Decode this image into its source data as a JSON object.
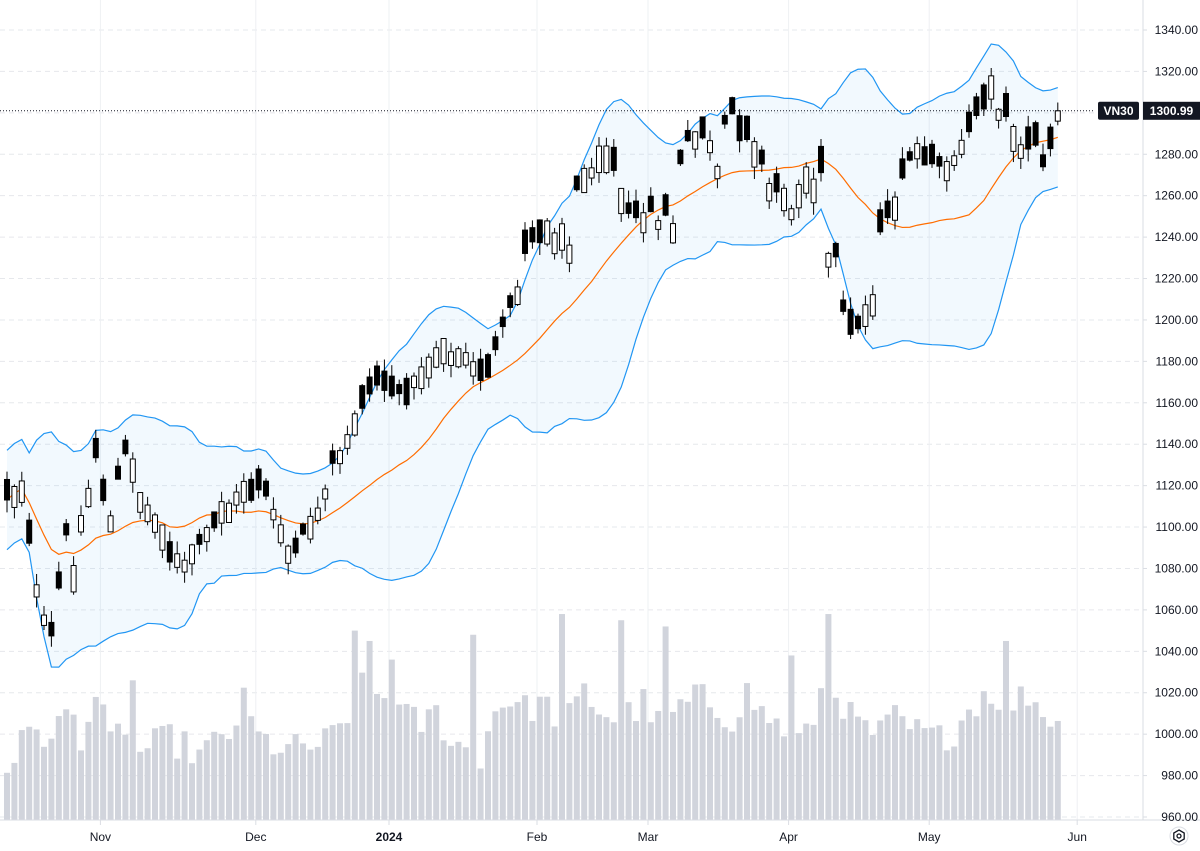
{
  "chart_data": {
    "type": "candlestick",
    "symbol": "VN30",
    "last_price": "1300.99",
    "y_axis": {
      "ylim": [
        960,
        1345
      ],
      "ticks": [
        "1340.00",
        "1320.00",
        "1300.00",
        "1280.00",
        "1260.00",
        "1240.00",
        "1220.00",
        "1200.00",
        "1180.00",
        "1160.00",
        "1140.00",
        "1120.00",
        "1100.00",
        "1080.00",
        "1060.00",
        "1040.00",
        "1020.00",
        "1000.00",
        "980.00",
        "960.00"
      ]
    },
    "x_axis": {
      "labels": [
        {
          "text": "Nov",
          "index": 6
        },
        {
          "text": "Dec",
          "index": 27
        },
        {
          "text": "2024",
          "index": 45,
          "bold": true
        },
        {
          "text": "Feb",
          "index": 65
        },
        {
          "text": "Mar",
          "index": 80
        },
        {
          "text": "Apr",
          "index": 99
        },
        {
          "text": "May",
          "index": 118
        },
        {
          "text": "Jun",
          "index": 138
        }
      ]
    },
    "grid": true,
    "bollinger_bands": {
      "upper": "blue",
      "middle": "orange",
      "lower": "blue",
      "fill": "light-blue"
    },
    "volume_in_price_units": true,
    "anchors": [
      [
        0,
        1120,
        1110
      ],
      [
        2,
        1125,
        1115
      ],
      [
        3,
        1100,
        1095
      ],
      [
        4,
        1068,
        1080
      ],
      [
        6,
        1040,
        1052
      ],
      [
        8,
        1045,
        1100
      ],
      [
        10,
        1100,
        1110
      ],
      [
        12,
        1140,
        1115
      ],
      [
        14,
        1100,
        1115
      ],
      [
        16,
        1130,
        1140
      ],
      [
        18,
        1140,
        1110
      ],
      [
        20,
        1100,
        1100
      ],
      [
        22,
        1085,
        1090
      ],
      [
        24,
        1080,
        1095
      ],
      [
        26,
        1090,
        1095
      ],
      [
        28,
        1100,
        1105
      ],
      [
        30,
        1110,
        1105
      ],
      [
        32,
        1115,
        1120
      ],
      [
        34,
        1125,
        1120
      ],
      [
        36,
        1115,
        1105
      ],
      [
        38,
        1095,
        1085
      ],
      [
        40,
        1090,
        1100
      ],
      [
        42,
        1105,
        1115
      ],
      [
        44,
        1125,
        1135
      ],
      [
        46,
        1140,
        1150
      ],
      [
        48,
        1155,
        1165
      ],
      [
        50,
        1170,
        1175
      ],
      [
        52,
        1165,
        1170
      ],
      [
        54,
        1168,
        1165
      ],
      [
        56,
        1170,
        1175
      ],
      [
        58,
        1180,
        1185
      ],
      [
        60,
        1185,
        1180
      ],
      [
        62,
        1183,
        1180
      ],
      [
        64,
        1178,
        1170
      ],
      [
        66,
        1175,
        1190
      ],
      [
        68,
        1200,
        1210
      ],
      [
        70,
        1220,
        1240
      ],
      [
        72,
        1240,
        1245
      ],
      [
        74,
        1245,
        1235
      ],
      [
        76,
        1230,
        1260
      ],
      [
        78,
        1265,
        1275
      ],
      [
        80,
        1275,
        1280
      ],
      [
        82,
        1280,
        1270
      ],
      [
        84,
        1255,
        1240
      ],
      [
        86,
        1245,
        1270
      ],
      [
        88,
        1265,
        1245
      ],
      [
        90,
        1240,
        1270
      ],
      [
        92,
        1275,
        1290
      ],
      [
        94,
        1295,
        1280
      ],
      [
        96,
        1270,
        1290
      ],
      [
        98,
        1295,
        1305
      ],
      [
        100,
        1295,
        1285
      ],
      [
        102,
        1280,
        1270
      ],
      [
        104,
        1268,
        1250
      ],
      [
        106,
        1250,
        1262
      ],
      [
        108,
        1265,
        1275
      ],
      [
        110,
        1280,
        1245
      ],
      [
        112,
        1235,
        1210
      ],
      [
        113,
        1208,
        1195
      ],
      [
        115,
        1195,
        1200
      ],
      [
        117,
        1205,
        1245
      ],
      [
        119,
        1245,
        1255
      ],
      [
        121,
        1258,
        1275
      ],
      [
        123,
        1280,
        1285
      ],
      [
        125,
        1282,
        1275
      ],
      [
        127,
        1270,
        1280
      ],
      [
        129,
        1282,
        1290
      ],
      [
        131,
        1295,
        1305
      ],
      [
        133,
        1310,
        1315
      ],
      [
        134,
        1312,
        1298
      ],
      [
        136,
        1300,
        1285
      ],
      [
        137,
        1290,
        1280
      ],
      [
        138,
        1282,
        1290
      ],
      [
        139,
        1292,
        1280
      ],
      [
        140,
        1278,
        1275
      ],
      [
        141,
        1275,
        1290
      ],
      [
        142,
        1292,
        1300
      ]
    ],
    "volume_anchors": [
      [
        0,
        985
      ],
      [
        4,
        1005
      ],
      [
        6,
        995
      ],
      [
        8,
        1012
      ],
      [
        10,
        1000
      ],
      [
        12,
        1018
      ],
      [
        14,
        995
      ],
      [
        16,
        1005
      ],
      [
        18,
        992
      ],
      [
        22,
        998
      ],
      [
        26,
        990
      ],
      [
        30,
        1000
      ],
      [
        32,
        1015
      ],
      [
        34,
        998
      ],
      [
        38,
        992
      ],
      [
        42,
        995
      ],
      [
        44,
        998
      ],
      [
        46,
        1005
      ],
      [
        48,
        1022
      ],
      [
        50,
        1020
      ],
      [
        52,
        1015
      ],
      [
        54,
        1008
      ],
      [
        56,
        1005
      ],
      [
        58,
        1010
      ],
      [
        60,
        998
      ],
      [
        62,
        992
      ],
      [
        64,
        990
      ],
      [
        66,
        1012
      ],
      [
        68,
        1018
      ],
      [
        70,
        1012
      ],
      [
        72,
        1015
      ],
      [
        74,
        1010
      ],
      [
        76,
        1008
      ],
      [
        78,
        1020
      ],
      [
        80,
        1012
      ],
      [
        82,
        1008
      ],
      [
        84,
        1010
      ],
      [
        86,
        1015
      ],
      [
        88,
        1005
      ],
      [
        90,
        1010
      ],
      [
        92,
        1015
      ],
      [
        94,
        1018
      ],
      [
        96,
        1012
      ],
      [
        98,
        1008
      ],
      [
        100,
        1020
      ],
      [
        102,
        1010
      ],
      [
        104,
        1005
      ],
      [
        106,
        1000
      ],
      [
        108,
        998
      ],
      [
        110,
        1020
      ],
      [
        112,
        1022
      ],
      [
        114,
        1008
      ],
      [
        116,
        1002
      ],
      [
        118,
        1000
      ],
      [
        120,
        1008
      ],
      [
        122,
        1002
      ],
      [
        124,
        1000
      ],
      [
        126,
        998
      ],
      [
        128,
        1002
      ],
      [
        130,
        1012
      ],
      [
        132,
        1020
      ],
      [
        134,
        1018
      ],
      [
        136,
        1015
      ],
      [
        138,
        1020
      ],
      [
        140,
        1010
      ],
      [
        142,
        1008
      ]
    ],
    "volume_tall_bars": [
      [
        17,
        1026
      ],
      [
        47,
        1050
      ],
      [
        49,
        1045
      ],
      [
        52,
        1036
      ],
      [
        63,
        1048
      ],
      [
        75,
        1058
      ],
      [
        83,
        1055
      ],
      [
        89,
        1052
      ],
      [
        106,
        1038
      ],
      [
        111,
        1058
      ],
      [
        135,
        1045
      ]
    ],
    "total_bars": 143
  }
}
